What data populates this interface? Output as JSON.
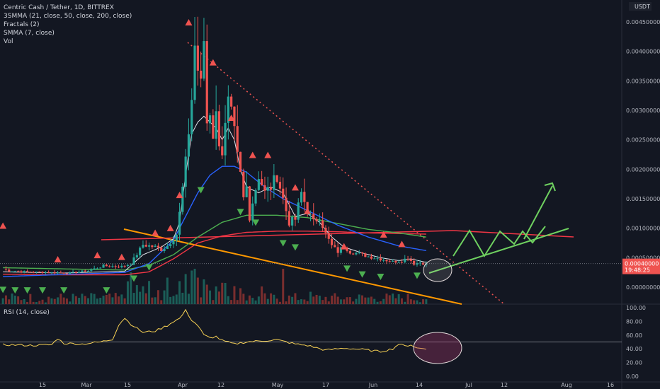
{
  "header": {
    "symbol": "Centric Cash / Tether, 1D, BITTREX",
    "ind1": "3SMMA (21, close, 50, close, 200, close)",
    "ind2": "Fractals (2)",
    "ind3": "SMMA (7, close)",
    "ind4": "Vol",
    "rsi": "RSI (14, close)",
    "currency": "USDT"
  },
  "last_price": {
    "value": "0.00040000",
    "countdown": "19:48:25"
  },
  "colors": {
    "bg": "#131722",
    "up": "#26a69a",
    "down": "#ef5350",
    "sma21": "#2962ff",
    "sma50": "#4caf50",
    "sma200": "#f23645",
    "smma7": "#e0e3eb",
    "fractal_up": "#ef5350",
    "fractal_down": "#4caf50",
    "rsi": "#f7d154",
    "orange": "#ff9800",
    "green": "#6fd160"
  },
  "chart_data": {
    "type": "candlestick",
    "x_ticks": [
      "15",
      "Mar",
      "15",
      "Apr",
      "12",
      "May",
      "17",
      "Jun",
      "14",
      "Jul",
      "12",
      "Aug",
      "16"
    ],
    "y_ticks": [
      "0.00450000",
      "0.00400000",
      "0.00350000",
      "0.00300000",
      "0.00250000",
      "0.00200000",
      "0.00150000",
      "0.00100000",
      "0.00050000",
      "0.00000000"
    ],
    "y_tick_values": [
      0.0045,
      0.004,
      0.0035,
      0.003,
      0.0025,
      0.002,
      0.0015,
      0.001,
      0.0005,
      0
    ],
    "ylim": [
      -0.0002,
      0.0045
    ],
    "rsi_ticks": [
      "100.00",
      "80.00",
      "60.00",
      "40.00",
      "20.00",
      "0.00"
    ],
    "rsi_tick_values": [
      100,
      80,
      60,
      40,
      20,
      0
    ],
    "candle_count": 140,
    "waypoints": [
      [
        0,
        0.00031
      ],
      [
        2,
        0.00028
      ],
      [
        8,
        0.00026
      ],
      [
        22,
        0.00024
      ],
      [
        28,
        0.00028
      ],
      [
        33,
        0.00036
      ],
      [
        39,
        0.00035
      ],
      [
        42,
        0.0004
      ],
      [
        46,
        0.00072
      ],
      [
        50,
        0.00068
      ],
      [
        52,
        0.00064
      ],
      [
        54,
        0.0007
      ],
      [
        57,
        0.0009
      ],
      [
        58,
        0.00125
      ],
      [
        60,
        0.0021
      ],
      [
        62,
        0.0032
      ],
      [
        63,
        0.0041
      ],
      [
        64,
        0.0037
      ],
      [
        65,
        0.0034
      ],
      [
        66,
        0.0042
      ],
      [
        67,
        0.0028
      ],
      [
        68,
        0.003
      ],
      [
        69,
        0.0026
      ],
      [
        70,
        0.0029
      ],
      [
        71,
        0.0025
      ],
      [
        72,
        0.0023
      ],
      [
        73,
        0.0027
      ],
      [
        74,
        0.0031
      ],
      [
        75,
        0.0029
      ],
      [
        76,
        0.0026
      ],
      [
        77,
        0.0022
      ],
      [
        78,
        0.0019
      ],
      [
        79,
        0.0015
      ],
      [
        80,
        0.0017
      ],
      [
        81,
        0.0012
      ],
      [
        82,
        0.00145
      ],
      [
        84,
        0.0019
      ],
      [
        86,
        0.0016
      ],
      [
        88,
        0.0017
      ],
      [
        90,
        0.0019
      ],
      [
        92,
        0.0015
      ],
      [
        94,
        0.0011
      ],
      [
        96,
        0.00115
      ],
      [
        98,
        0.0016
      ],
      [
        100,
        0.0013
      ],
      [
        102,
        0.0011
      ],
      [
        104,
        0.0012
      ],
      [
        106,
        0.0009
      ],
      [
        108,
        0.0007
      ],
      [
        110,
        0.0006
      ],
      [
        112,
        0.0007
      ],
      [
        114,
        0.0006
      ],
      [
        116,
        0.00058
      ],
      [
        120,
        0.00052
      ],
      [
        124,
        0.00048
      ],
      [
        128,
        0.00043
      ],
      [
        131,
        0.00045
      ],
      [
        133,
        0.0005
      ],
      [
        135,
        0.0004
      ],
      [
        137,
        0.00042
      ],
      [
        139,
        0.00039
      ]
    ],
    "vol_spikes": [
      [
        42,
        0.9
      ],
      [
        54,
        0.75
      ],
      [
        58,
        0.65
      ],
      [
        60,
        0.85
      ],
      [
        62,
        0.95
      ],
      [
        63,
        1.0
      ],
      [
        64,
        0.75
      ],
      [
        66,
        0.7
      ],
      [
        67,
        0.55
      ],
      [
        70,
        0.5
      ],
      [
        73,
        0.6
      ],
      [
        78,
        0.45
      ],
      [
        85,
        0.5
      ],
      [
        92,
        1.0
      ],
      [
        101,
        0.35
      ]
    ],
    "sma21_wp": [
      [
        0,
        0.00018
      ],
      [
        40,
        0.00025
      ],
      [
        48,
        0.0004
      ],
      [
        56,
        0.0008
      ],
      [
        60,
        0.0012
      ],
      [
        64,
        0.0016
      ],
      [
        68,
        0.0019
      ],
      [
        72,
        0.00205
      ],
      [
        76,
        0.00205
      ],
      [
        80,
        0.00195
      ],
      [
        86,
        0.0017
      ],
      [
        92,
        0.0015
      ],
      [
        100,
        0.0013
      ],
      [
        110,
        0.00105
      ],
      [
        120,
        0.00085
      ],
      [
        130,
        0.0007
      ],
      [
        139,
        0.00062
      ]
    ],
    "sma50_wp": [
      [
        0,
        0.00033
      ],
      [
        20,
        0.00031
      ],
      [
        40,
        0.00029
      ],
      [
        48,
        0.00037
      ],
      [
        56,
        0.00055
      ],
      [
        64,
        0.00085
      ],
      [
        72,
        0.0011
      ],
      [
        80,
        0.00122
      ],
      [
        90,
        0.00122
      ],
      [
        100,
        0.00118
      ],
      [
        110,
        0.00108
      ],
      [
        120,
        0.00098
      ],
      [
        130,
        0.00092
      ],
      [
        139,
        0.00085
      ]
    ],
    "sma200_wp": [
      [
        0,
        0.00022
      ],
      [
        20,
        0.00021
      ],
      [
        40,
        0.00021
      ],
      [
        48,
        0.00026
      ],
      [
        56,
        0.00048
      ],
      [
        64,
        0.00075
      ],
      [
        72,
        0.00087
      ],
      [
        80,
        0.00093
      ],
      [
        90,
        0.00095
      ],
      [
        100,
        0.00095
      ],
      [
        110,
        0.00094
      ],
      [
        120,
        0.00092
      ],
      [
        130,
        0.00091
      ],
      [
        139,
        0.0009
      ]
    ],
    "smma7_wp": [
      [
        0,
        0.00026
      ],
      [
        20,
        0.00024
      ],
      [
        40,
        0.00027
      ],
      [
        46,
        0.00055
      ],
      [
        52,
        0.00068
      ],
      [
        56,
        0.00082
      ],
      [
        58,
        0.0011
      ],
      [
        60,
        0.0019
      ],
      [
        62,
        0.0026
      ],
      [
        64,
        0.0028
      ],
      [
        66,
        0.0029
      ],
      [
        68,
        0.0028
      ],
      [
        70,
        0.0027
      ],
      [
        72,
        0.0025
      ],
      [
        74,
        0.0027
      ],
      [
        76,
        0.0025
      ],
      [
        78,
        0.002
      ],
      [
        80,
        0.0017
      ],
      [
        84,
        0.0016
      ],
      [
        88,
        0.0017
      ],
      [
        92,
        0.0016
      ],
      [
        96,
        0.0012
      ],
      [
        100,
        0.00125
      ],
      [
        104,
        0.0011
      ],
      [
        108,
        0.00085
      ],
      [
        112,
        0.00068
      ],
      [
        118,
        0.00058
      ],
      [
        124,
        0.0005
      ],
      [
        130,
        0.00045
      ],
      [
        134,
        0.00048
      ],
      [
        139,
        0.00042
      ]
    ],
    "fractals_up": [
      [
        0,
        0.00105
      ],
      [
        18,
        0.00048
      ],
      [
        31,
        0.00055
      ],
      [
        39,
        0.00052
      ],
      [
        50,
        0.00093
      ],
      [
        55,
        0.00101
      ],
      [
        58,
        0.00157
      ],
      [
        61,
        0.0045
      ],
      [
        69,
        0.00382
      ],
      [
        75,
        0.00288
      ],
      [
        82,
        0.00225
      ],
      [
        87,
        0.00225
      ],
      [
        96,
        0.0017
      ],
      [
        100,
        0.0013
      ],
      [
        112,
        0.0007
      ],
      [
        125,
        0.0009
      ],
      [
        131,
        0.00074
      ]
    ],
    "fractals_down": [
      [
        0,
        -4e-05
      ],
      [
        4,
        -5e-05
      ],
      [
        8,
        -5e-05
      ],
      [
        13,
        -5e-05
      ],
      [
        20,
        -5e-05
      ],
      [
        34,
        -5e-05
      ],
      [
        43,
        0.00015
      ],
      [
        48,
        0.00034
      ],
      [
        65,
        0.00165
      ],
      [
        78,
        0.00128
      ],
      [
        83,
        0.0011
      ],
      [
        92,
        0.00075
      ],
      [
        96,
        0.00068
      ],
      [
        113,
        0.00032
      ],
      [
        118,
        0.00022
      ],
      [
        124,
        0.00018
      ],
      [
        136,
        0.0002
      ]
    ],
    "rsi_wp": [
      [
        0,
        46
      ],
      [
        10,
        45
      ],
      [
        16,
        46
      ],
      [
        18,
        55
      ],
      [
        20,
        48
      ],
      [
        26,
        47
      ],
      [
        32,
        50
      ],
      [
        36,
        54
      ],
      [
        38,
        75
      ],
      [
        40,
        85
      ],
      [
        42,
        76
      ],
      [
        46,
        64
      ],
      [
        50,
        66
      ],
      [
        54,
        74
      ],
      [
        56,
        80
      ],
      [
        58,
        84
      ],
      [
        60,
        96
      ],
      [
        62,
        82
      ],
      [
        64,
        74
      ],
      [
        66,
        60
      ],
      [
        68,
        56
      ],
      [
        70,
        58
      ],
      [
        72,
        52
      ],
      [
        76,
        47
      ],
      [
        80,
        50
      ],
      [
        86,
        52
      ],
      [
        90,
        53
      ],
      [
        96,
        47
      ],
      [
        100,
        45
      ],
      [
        106,
        38
      ],
      [
        112,
        41
      ],
      [
        118,
        39
      ],
      [
        124,
        36
      ],
      [
        128,
        40
      ],
      [
        130,
        47
      ],
      [
        132,
        44
      ],
      [
        134,
        46
      ],
      [
        136,
        41
      ],
      [
        139,
        40
      ]
    ],
    "rsi_level": 50
  }
}
